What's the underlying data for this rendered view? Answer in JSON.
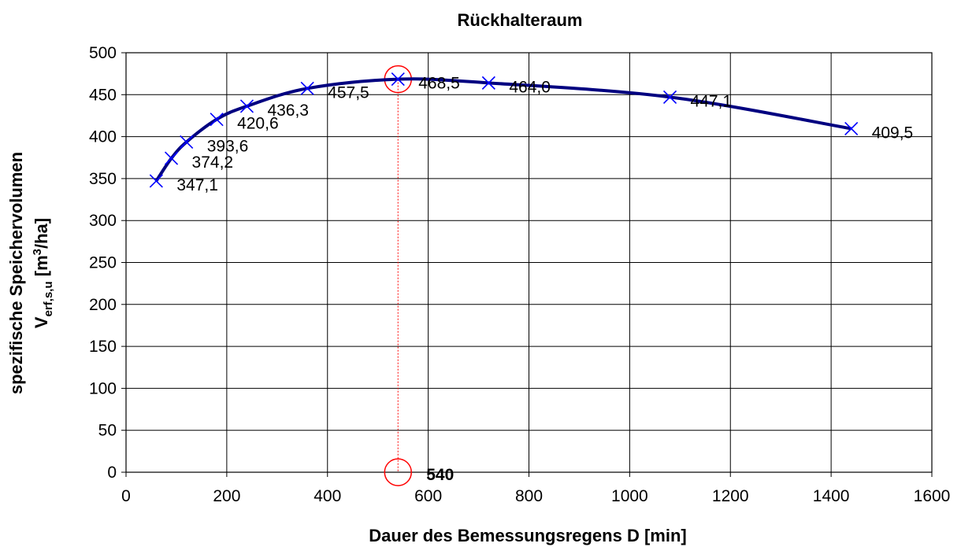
{
  "chart_data": {
    "type": "line",
    "title": "Rückhalteraum",
    "xlabel": "Dauer des Bemessungsregens D [min]",
    "ylabel_line1": "spezifische Speichervolumen",
    "ylabel_line2": {
      "main": "V",
      "sub": "erf,s,u",
      "rest_open": " [m",
      "sup": "3",
      "rest_close": "/ha]"
    },
    "xlim": [
      0,
      1600
    ],
    "ylim": [
      0,
      500
    ],
    "xticks": [
      "0",
      "200",
      "400",
      "600",
      "800",
      "1000",
      "1200",
      "1400",
      "1600"
    ],
    "yticks": [
      "0",
      "50",
      "100",
      "150",
      "200",
      "250",
      "300",
      "350",
      "400",
      "450",
      "500"
    ],
    "grid": true,
    "series": [
      {
        "x": [
          60,
          90,
          120,
          180,
          240,
          360,
          540,
          720,
          1080,
          1440
        ],
        "y": [
          347.1,
          374.2,
          393.6,
          420.6,
          436.3,
          457.5,
          468.5,
          464.0,
          447.1,
          409.5
        ],
        "labels": [
          "347,1",
          "374,2",
          "393,6",
          "420,6",
          "436,3",
          "457,5",
          "468,5",
          "464,0",
          "447,1",
          "409,5"
        ]
      }
    ],
    "highlight": {
      "x": 540,
      "y": 468.5,
      "label": "540"
    },
    "colors": {
      "line": "#000080",
      "marker": "#0000ff",
      "highlight": "#ff0000",
      "grid": "#000000"
    }
  }
}
